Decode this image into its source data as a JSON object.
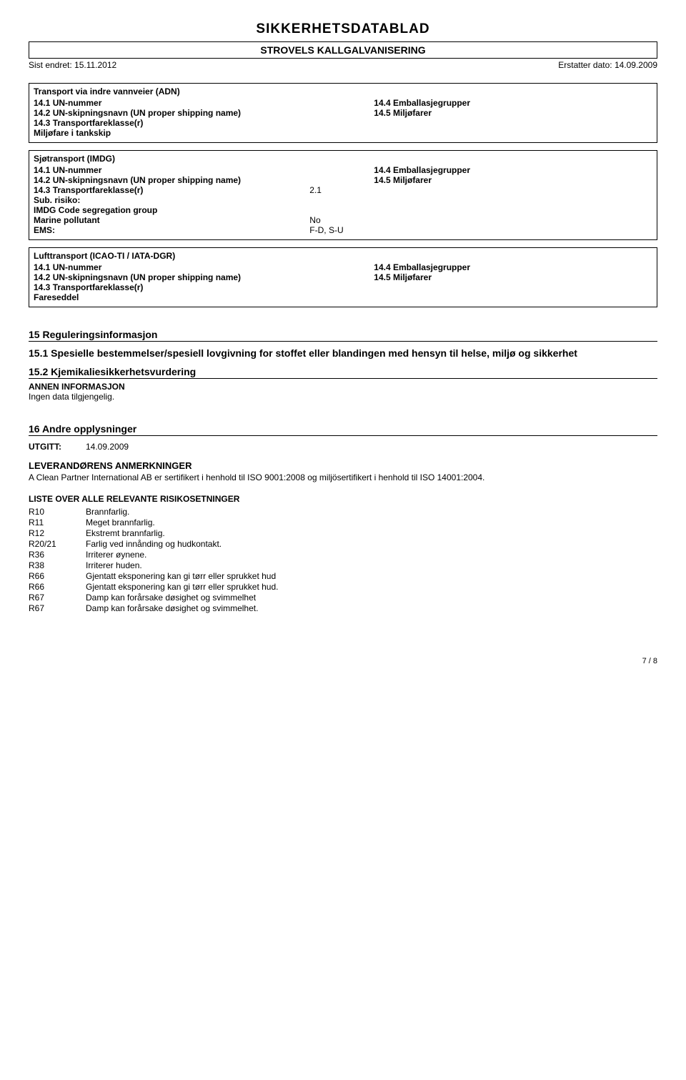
{
  "header": {
    "title": "SIKKERHETSDATABLAD",
    "subtitle": "STROVELS KALLGALVANISERING",
    "changed_label": "Sist endret: 15.11.2012",
    "replaces_label": "Erstatter dato: 14.09.2009"
  },
  "adn": {
    "title": "Transport via indre vannveier (ADN)",
    "un_num_lbl": "14.1 UN-nummer",
    "ship_lbl": "14.2 UN-skipningsnavn (UN proper shipping name)",
    "class_lbl": "14.3 Transportfareklasse(r)",
    "tank_lbl": "Miljøfare i tankskip",
    "pack_lbl": "14.4 Emballasjegrupper",
    "env_lbl": "14.5 Miljøfarer"
  },
  "imdg": {
    "title": "Sjøtransport (IMDG)",
    "un_num_lbl": "14.1 UN-nummer",
    "ship_lbl": "14.2 UN-skipningsnavn (UN proper shipping name)",
    "class_lbl": "14.3 Transportfareklasse(r)",
    "class_val": "2.1",
    "sub_lbl": "Sub. risiko:",
    "seg_lbl": "IMDG Code segregation group",
    "mp_lbl": "Marine pollutant",
    "mp_val": "No",
    "ems_lbl": "EMS:",
    "ems_val": "F-D, S-U",
    "pack_lbl": "14.4 Emballasjegrupper",
    "env_lbl": "14.5 Miljøfarer"
  },
  "icao": {
    "title": "Lufttransport (ICAO-TI / IATA-DGR)",
    "un_num_lbl": "14.1 UN-nummer",
    "ship_lbl": "14.2 UN-skipningsnavn (UN proper shipping name)",
    "class_lbl": "14.3 Transportfareklasse(r)",
    "fare_lbl": "Fareseddel",
    "pack_lbl": "14.4 Emballasjegrupper",
    "env_lbl": "14.5 Miljøfarer"
  },
  "s15": {
    "title": "15 Reguleringsinformasjon",
    "s15_1": "15.1 Spesielle bestemmelser/spesiell lovgivning for stoffet eller blandingen med hensyn til helse, miljø og sikkerhet",
    "s15_2": "15.2 Kjemikaliesikkerhetsvurdering",
    "annen": "ANNEN INFORMASJON",
    "none": "Ingen data tilgjengelig."
  },
  "s16": {
    "title": "16 Andre opplysninger",
    "utgitt_lbl": "UTGITT:",
    "utgitt_val": "14.09.2009",
    "lev_title": "LEVERANDØRENS ANMERKNINGER",
    "lev_text": "A Clean Partner International AB er sertifikert i henhold til ISO 9001:2008 og miljösertifikert i henhold til ISO 14001:2004.",
    "list_title": "LISTE OVER ALLE RELEVANTE RISIKOSETNINGER",
    "rows": [
      [
        "R10",
        "Brannfarlig."
      ],
      [
        "R11",
        "Meget brannfarlig."
      ],
      [
        "R12",
        "Ekstremt brannfarlig."
      ],
      [
        "R20/21",
        "Farlig ved innånding og hudkontakt."
      ],
      [
        "R36",
        "Irriterer øynene."
      ],
      [
        "R38",
        "Irriterer huden."
      ],
      [
        "R66",
        "Gjentatt eksponering kan gi tørr eller sprukket hud"
      ],
      [
        "R66",
        "Gjentatt eksponering kan gi tørr eller sprukket hud."
      ],
      [
        "R67",
        "Damp kan forårsake døsighet og svimmelhet"
      ],
      [
        "R67",
        "Damp kan forårsake døsighet og svimmelhet."
      ]
    ]
  },
  "page": "7 / 8"
}
